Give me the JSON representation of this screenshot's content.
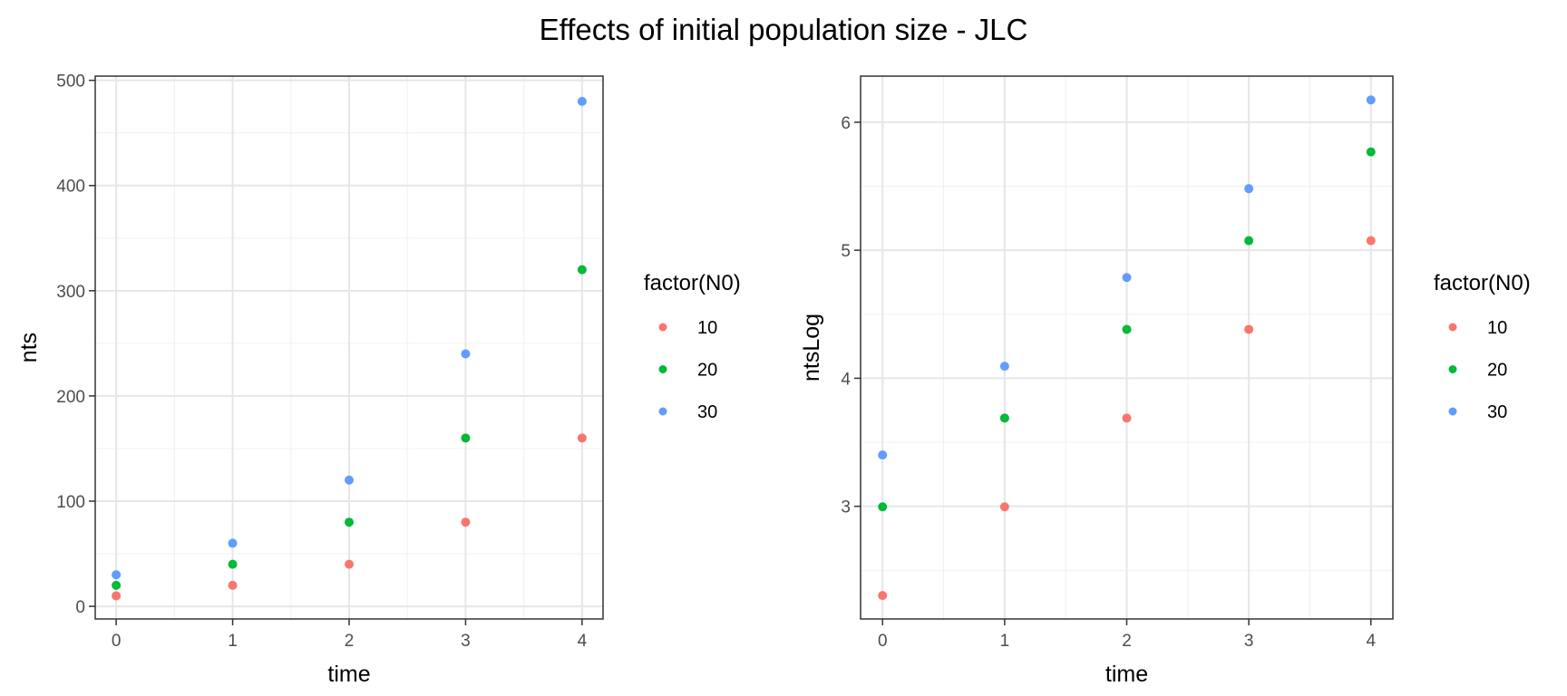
{
  "title": "Effects of initial population size - JLC",
  "colors": {
    "10": "#F8766D",
    "20": "#00BA38",
    "30": "#619CFF"
  },
  "chart_data": [
    {
      "type": "scatter",
      "xlabel": "time",
      "ylabel": "nts",
      "x_ticks": [
        0,
        1,
        2,
        3,
        4
      ],
      "y_ticks": [
        0,
        100,
        200,
        300,
        400,
        500
      ],
      "xlim": [
        -0.18,
        4.18
      ],
      "ylim": [
        -12,
        504
      ],
      "grid": true,
      "legend_position": "right",
      "legend_title": "factor(N0)",
      "series": [
        {
          "name": "10",
          "x": [
            0,
            1,
            2,
            3,
            4
          ],
          "y": [
            10,
            20,
            40,
            80,
            160
          ]
        },
        {
          "name": "20",
          "x": [
            0,
            1,
            2,
            3,
            4
          ],
          "y": [
            20,
            40,
            80,
            160,
            320
          ]
        },
        {
          "name": "30",
          "x": [
            0,
            1,
            2,
            3,
            4
          ],
          "y": [
            30,
            60,
            120,
            240,
            480
          ]
        }
      ]
    },
    {
      "type": "scatter",
      "xlabel": "time",
      "ylabel": "ntsLog",
      "x_ticks": [
        0,
        1,
        2,
        3,
        4
      ],
      "y_ticks": [
        3,
        4,
        5,
        6
      ],
      "xlim": [
        -0.18,
        4.18
      ],
      "ylim": [
        2.12,
        6.36
      ],
      "grid": true,
      "legend_position": "right",
      "legend_title": "factor(N0)",
      "series": [
        {
          "name": "10",
          "x": [
            0,
            1,
            2,
            3,
            4
          ],
          "y": [
            2.303,
            2.996,
            3.689,
            4.382,
            5.075
          ]
        },
        {
          "name": "20",
          "x": [
            0,
            1,
            2,
            3,
            4
          ],
          "y": [
            2.996,
            3.689,
            4.382,
            5.075,
            5.768
          ]
        },
        {
          "name": "30",
          "x": [
            0,
            1,
            2,
            3,
            4
          ],
          "y": [
            3.401,
            4.094,
            4.787,
            5.481,
            6.174
          ]
        }
      ]
    }
  ]
}
